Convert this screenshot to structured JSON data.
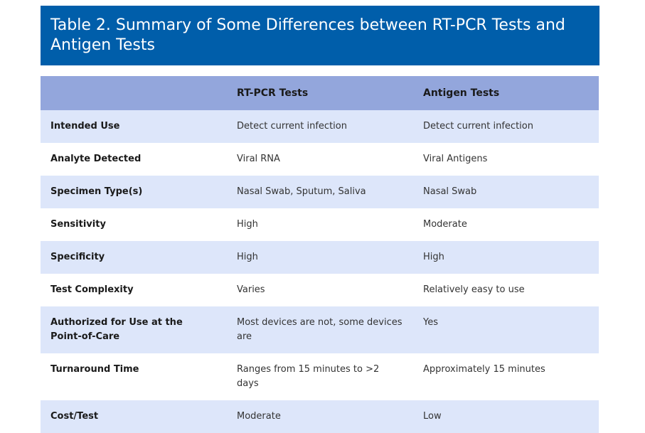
{
  "title": "Table 2. Summary of Some Differences between RT-PCR Tests and Antigen Tests",
  "colors": {
    "title_bar": "#005eaa",
    "header_row": "#93a6dc",
    "band_row": "#dde6fa"
  },
  "table": {
    "headers": [
      "",
      "RT-PCR Tests",
      "Antigen Tests"
    ],
    "rows": [
      [
        "Intended Use",
        "Detect current infection",
        "Detect current infection"
      ],
      [
        "Analyte Detected",
        "Viral RNA",
        "Viral Antigens"
      ],
      [
        "Specimen Type(s)",
        "Nasal Swab, Sputum, Saliva",
        "Nasal Swab"
      ],
      [
        "Sensitivity",
        "High",
        "Moderate"
      ],
      [
        "Specificity",
        "High",
        "High"
      ],
      [
        "Test Complexity",
        "Varies",
        "Relatively easy to use"
      ],
      [
        "Authorized for Use at the Point-of-Care",
        "Most devices are not, some devices are",
        "Yes"
      ],
      [
        "Turnaround Time",
        "Ranges from 15 minutes to >2 days",
        "Approximately 15 minutes"
      ],
      [
        "Cost/Test",
        "Moderate",
        "Low"
      ]
    ]
  }
}
